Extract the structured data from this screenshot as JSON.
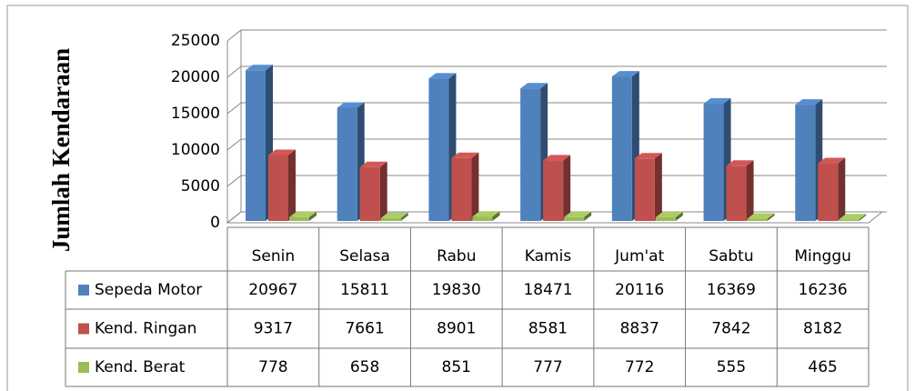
{
  "chart_data": {
    "type": "bar3d",
    "y_label": "Jumlah Kendaraan",
    "categories": [
      "Senin",
      "Selasa",
      "Rabu",
      "Kamis",
      "Jum'at",
      "Sabtu",
      "Minggu"
    ],
    "series": [
      {
        "name": "Sepeda Motor",
        "color": "#4f81bd",
        "values": [
          20967,
          15811,
          19830,
          18471,
          20116,
          16369,
          16236
        ]
      },
      {
        "name": "Kend. Ringan",
        "color": "#c0504d",
        "values": [
          9317,
          7661,
          8901,
          8581,
          8837,
          7842,
          8182
        ]
      },
      {
        "name": "Kend. Berat",
        "color": "#9bbb59",
        "values": [
          778,
          658,
          851,
          777,
          772,
          555,
          465
        ]
      }
    ],
    "ylim": [
      0,
      25000
    ],
    "yticks": [
      0,
      5000,
      10000,
      15000,
      20000,
      25000
    ],
    "grid": true,
    "data_table": true
  }
}
